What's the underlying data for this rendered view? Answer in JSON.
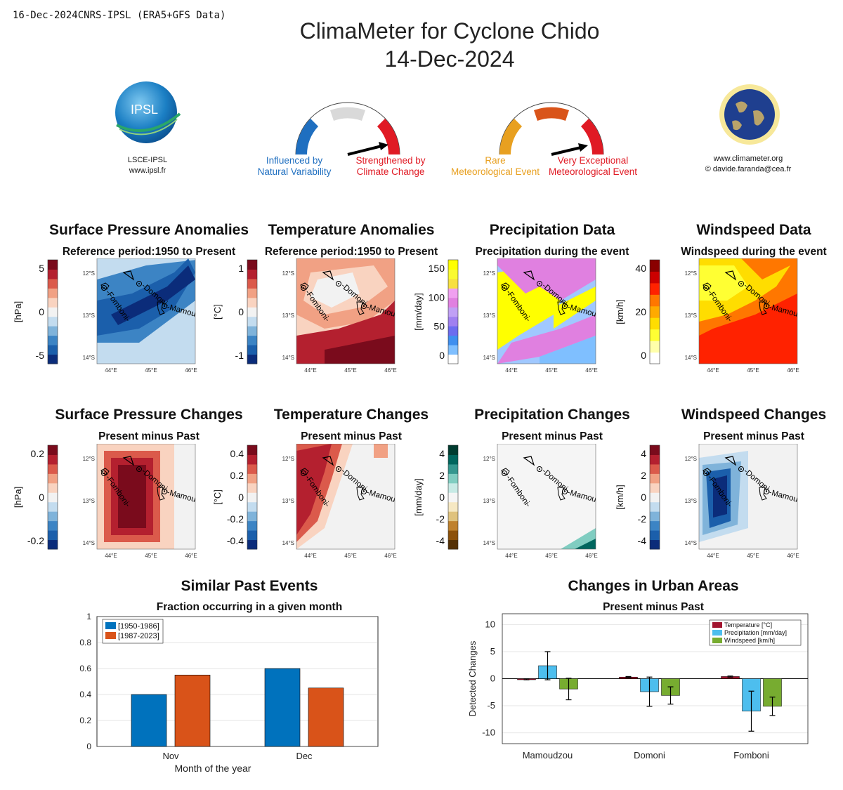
{
  "header": {
    "stamp": "16-Dec-2024CNRS-IPSL (ERA5+GFS Data)",
    "title_line1": "ClimaMeter for Cyclone  Chido",
    "title_line2": "14-Dec-2024"
  },
  "logos": {
    "ipsl_text": "IPSL",
    "ipsl_caption1": "LSCE-IPSL",
    "ipsl_caption2": "www.ipsl.fr",
    "cm_caption1": "www.climameter.org",
    "cm_caption2": "© davide.faranda@cea.fr"
  },
  "gauges": {
    "g1_left1": "Influenced by",
    "g1_left2": "Natural Variability",
    "g1_right1": "Strengthened by",
    "g1_right2": "Climate Change",
    "g2_left1": "Rare",
    "g2_left2": "Meteorological Event",
    "g2_right1": "Very Exceptional",
    "g2_right2": "Meteorological Event",
    "colors": {
      "blue": "#1f6fc0",
      "red": "#e01a24",
      "grey": "#d9d9d9",
      "orange": "#e8a020",
      "darkorange": "#d9541a"
    }
  },
  "maps": {
    "lat_ticks": [
      "12°S",
      "13°S",
      "14°S"
    ],
    "lon_ticks": [
      "44°E",
      "45°E",
      "46°E"
    ],
    "cities": [
      "Fomboni",
      "Domoni",
      "Mamoudzou"
    ],
    "row1": [
      {
        "title": "Surface Pressure Anomalies",
        "subtitle": "Reference period:1950 to Present",
        "unit": "[hPa]",
        "ticks": [
          "5",
          "0",
          "-5"
        ]
      },
      {
        "title": "Temperature Anomalies",
        "subtitle": "Reference period:1950 to Present",
        "unit": "[°C]",
        "ticks": [
          "1",
          "0",
          "-1"
        ]
      },
      {
        "title": "Precipitation Data",
        "subtitle": "Precipitation during the event",
        "unit": "[mm/day]",
        "ticks": [
          "150",
          "100",
          "50",
          "0"
        ]
      },
      {
        "title": "Windspeed Data",
        "subtitle": "Windspeed during the event",
        "unit": "[km/h]",
        "ticks": [
          "40",
          "20",
          "0"
        ]
      }
    ],
    "row2": [
      {
        "title": "Surface Pressure Changes",
        "subtitle": "Present minus Past",
        "unit": "[hPa]",
        "ticks": [
          "0.2",
          "0",
          "-0.2"
        ]
      },
      {
        "title": "Temperature Changes",
        "subtitle": "Present minus Past",
        "unit": "[°C]",
        "ticks": [
          "0.4",
          "0.2",
          "0",
          "-0.2",
          "-0.4"
        ]
      },
      {
        "title": "Precipitation Changes",
        "subtitle": "Present minus Past",
        "unit": "[mm/day]",
        "ticks": [
          "4",
          "2",
          "0",
          "-2",
          "-4"
        ]
      },
      {
        "title": "Windspeed Changes",
        "subtitle": "Present minus Past",
        "unit": "[km/h]",
        "ticks": [
          "4",
          "2",
          "0",
          "-2",
          "-4"
        ]
      }
    ]
  },
  "chart_data": [
    {
      "type": "bar",
      "title": "Similar Past Events",
      "subtitle": "Fraction occurring in a given month",
      "xlabel": "Month of the year",
      "ylabel": "",
      "categories": [
        "Nov",
        "Dec"
      ],
      "series": [
        {
          "name": "[1950-1986]",
          "values": [
            0.4,
            0.6
          ],
          "color": "#0072bd"
        },
        {
          "name": "[1987-2023]",
          "values": [
            0.55,
            0.45
          ],
          "color": "#d95319"
        }
      ],
      "ylim": [
        0,
        1
      ],
      "yticks": [
        "0",
        "0.2",
        "0.4",
        "0.6",
        "0.8",
        "1"
      ],
      "legend": "top-left"
    },
    {
      "type": "bar",
      "title": "Changes in Urban Areas",
      "subtitle": "Present minus Past",
      "xlabel": "",
      "ylabel": "Detected Changes",
      "categories": [
        "Mamoudzou",
        "Domoni",
        "Fomboni"
      ],
      "series": [
        {
          "name": "Temperature [°C]",
          "values": [
            -0.1,
            0.3,
            0.4
          ],
          "err": [
            0.1,
            0.1,
            0.1
          ],
          "color": "#a2142f"
        },
        {
          "name": "Precipitation [mm/day]",
          "values": [
            2.4,
            -2.4,
            -6.0
          ],
          "err": [
            2.6,
            2.7,
            3.7
          ],
          "color": "#4dbeee"
        },
        {
          "name": "Windspeed [km/h]",
          "values": [
            -1.9,
            -3.1,
            -5.1
          ],
          "err": [
            2.0,
            1.6,
            1.7
          ],
          "color": "#77ac30"
        }
      ],
      "ylim": [
        -12,
        12
      ],
      "yticks": [
        "10",
        "5",
        "0",
        "-5",
        "-10"
      ],
      "legend": "top-right"
    }
  ]
}
